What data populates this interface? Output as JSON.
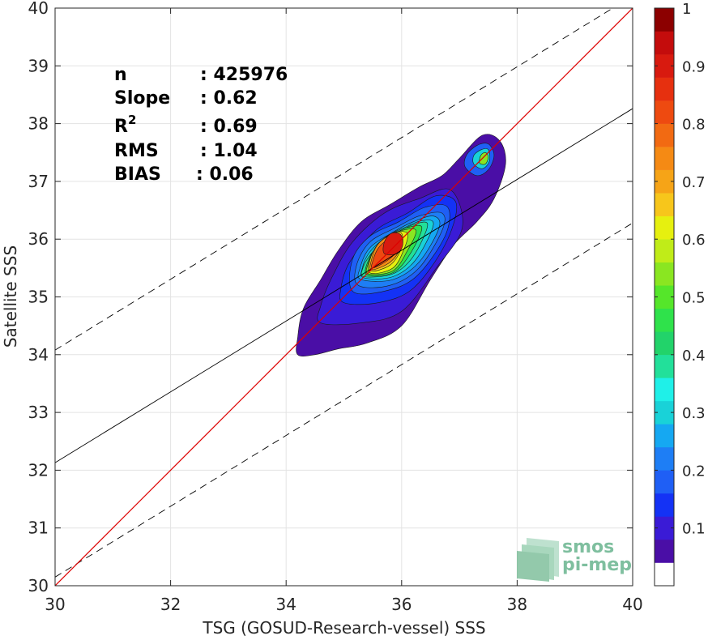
{
  "chart_data": {
    "type": "contourf-scatter-density",
    "xlabel": "TSG (GOSUD-Research-vessel) SSS",
    "ylabel": "Satellite SSS",
    "xlim": [
      30,
      40
    ],
    "ylim": [
      30,
      40
    ],
    "x_ticks": [
      "30",
      "32",
      "34",
      "36",
      "38",
      "40"
    ],
    "y_ticks": [
      "30",
      "31",
      "32",
      "33",
      "34",
      "35",
      "36",
      "37",
      "38",
      "39",
      "40"
    ],
    "grid": true,
    "stats": [
      {
        "label": "n",
        "value": ": 425976"
      },
      {
        "label": "Slope",
        "value": ": 0.62"
      },
      {
        "label": "R",
        "sup": "2",
        "value": ": 0.69"
      },
      {
        "label": "RMS",
        "value": ": 1.04"
      },
      {
        "label": "BIAS",
        "value": ": 0.06"
      }
    ],
    "identity_line": {
      "x": [
        30,
        40
      ],
      "y": [
        30,
        40
      ],
      "color": "#dd0000"
    },
    "regression_line": {
      "x": [
        30,
        40
      ],
      "y": [
        32.13,
        38.26
      ],
      "color": "#000000"
    },
    "regression_bounds": [
      {
        "x": [
          30,
          40
        ],
        "y": [
          34.08,
          40.21
        ]
      },
      {
        "x": [
          30,
          40
        ],
        "y": [
          30.15,
          36.28
        ]
      }
    ],
    "density_levels": [
      {
        "level": 0.05,
        "color": "#4a0ea6",
        "points": [
          [
            34.2,
            34.0
          ],
          [
            34.5,
            34.0
          ],
          [
            34.9,
            34.1
          ],
          [
            35.4,
            34.2
          ],
          [
            36.0,
            34.5
          ],
          [
            36.5,
            35.3
          ],
          [
            36.9,
            35.9
          ],
          [
            37.3,
            36.3
          ],
          [
            37.6,
            36.7
          ],
          [
            37.8,
            37.3
          ],
          [
            37.7,
            37.7
          ],
          [
            37.4,
            37.8
          ],
          [
            37.0,
            37.4
          ],
          [
            36.7,
            37.1
          ],
          [
            36.3,
            36.9
          ],
          [
            35.8,
            36.6
          ],
          [
            35.3,
            36.3
          ],
          [
            34.9,
            35.8
          ],
          [
            34.6,
            35.3
          ],
          [
            34.3,
            34.8
          ],
          [
            34.2,
            34.3
          ]
        ]
      },
      {
        "level": 0.1,
        "color": "#3a1bd6",
        "points": [
          [
            34.6,
            34.55
          ],
          [
            35.3,
            34.55
          ],
          [
            36.0,
            34.75
          ],
          [
            36.6,
            35.5
          ],
          [
            37.05,
            36.2
          ],
          [
            36.85,
            36.85
          ],
          [
            36.3,
            36.7
          ],
          [
            35.7,
            36.45
          ],
          [
            35.15,
            35.95
          ],
          [
            34.8,
            35.35
          ],
          [
            34.6,
            34.85
          ]
        ]
      },
      {
        "level": 0.15,
        "color": "#1432f5",
        "points": [
          [
            35.0,
            34.9
          ],
          [
            35.6,
            34.9
          ],
          [
            36.2,
            35.15
          ],
          [
            36.75,
            35.9
          ],
          [
            36.95,
            36.6
          ],
          [
            36.6,
            36.75
          ],
          [
            36.1,
            36.45
          ],
          [
            35.55,
            36.15
          ],
          [
            35.1,
            35.6
          ],
          [
            34.95,
            35.15
          ]
        ]
      },
      {
        "level": 0.2,
        "color": "#1f5ff5",
        "points": [
          [
            35.15,
            35.1
          ],
          [
            35.7,
            35.1
          ],
          [
            36.25,
            35.35
          ],
          [
            36.75,
            36.05
          ],
          [
            36.8,
            36.55
          ],
          [
            36.4,
            36.55
          ],
          [
            35.95,
            36.3
          ],
          [
            35.45,
            36.05
          ],
          [
            35.15,
            35.65
          ]
        ]
      },
      {
        "level": 0.25,
        "color": "#1e7ef5",
        "points": [
          [
            35.25,
            35.2
          ],
          [
            35.8,
            35.2
          ],
          [
            36.3,
            35.5
          ],
          [
            36.7,
            36.15
          ],
          [
            36.7,
            36.45
          ],
          [
            36.3,
            36.4
          ],
          [
            35.9,
            36.2
          ],
          [
            35.45,
            35.95
          ],
          [
            35.22,
            35.55
          ]
        ]
      },
      {
        "level": 0.3,
        "color": "#15a8f2",
        "points": [
          [
            35.3,
            35.3
          ],
          [
            35.85,
            35.3
          ],
          [
            36.3,
            35.6
          ],
          [
            36.65,
            36.2
          ],
          [
            36.55,
            36.4
          ],
          [
            36.2,
            36.3
          ],
          [
            35.85,
            36.12
          ],
          [
            35.45,
            35.85
          ],
          [
            35.28,
            35.5
          ]
        ]
      },
      {
        "level": 0.35,
        "color": "#19d2d8",
        "points": [
          [
            35.35,
            35.33
          ],
          [
            35.85,
            35.35
          ],
          [
            36.25,
            35.65
          ],
          [
            36.55,
            36.25
          ],
          [
            36.35,
            36.32
          ],
          [
            36.05,
            36.2
          ],
          [
            35.75,
            36.05
          ],
          [
            35.45,
            35.78
          ],
          [
            35.32,
            35.5
          ]
        ]
      },
      {
        "level": 0.4,
        "color": "#22e09a",
        "points": [
          [
            35.35,
            35.35
          ],
          [
            35.85,
            35.4
          ],
          [
            36.2,
            35.7
          ],
          [
            36.45,
            36.25
          ],
          [
            36.2,
            36.25
          ],
          [
            35.95,
            36.12
          ],
          [
            35.7,
            36.0
          ],
          [
            35.45,
            35.72
          ],
          [
            35.33,
            35.5
          ]
        ]
      },
      {
        "level": 0.45,
        "color": "#2fe24b",
        "points": [
          [
            35.4,
            35.38
          ],
          [
            35.85,
            35.42
          ],
          [
            36.15,
            35.75
          ],
          [
            36.35,
            36.2
          ],
          [
            36.1,
            36.2
          ],
          [
            35.85,
            36.08
          ],
          [
            35.6,
            35.9
          ],
          [
            35.43,
            35.65
          ]
        ]
      },
      {
        "level": 0.5,
        "color": "#8ae621",
        "points": [
          [
            35.42,
            35.4
          ],
          [
            35.85,
            35.45
          ],
          [
            36.1,
            35.8
          ],
          [
            36.25,
            36.15
          ],
          [
            36.0,
            36.15
          ],
          [
            35.75,
            36.05
          ],
          [
            35.55,
            35.85
          ],
          [
            35.43,
            35.6
          ]
        ]
      },
      {
        "level": 0.55,
        "color": "#e6f00f",
        "points": [
          [
            35.45,
            35.42
          ],
          [
            35.85,
            35.5
          ],
          [
            36.05,
            35.85
          ],
          [
            36.1,
            36.1
          ],
          [
            35.9,
            36.12
          ],
          [
            35.68,
            36.0
          ],
          [
            35.5,
            35.75
          ]
        ]
      },
      {
        "level": 0.6,
        "color": "#f7c61b",
        "points": [
          [
            35.45,
            35.45
          ],
          [
            35.8,
            35.55
          ],
          [
            36.0,
            35.85
          ],
          [
            36.0,
            36.1
          ],
          [
            35.85,
            36.1
          ],
          [
            35.62,
            35.95
          ],
          [
            35.47,
            35.7
          ]
        ]
      },
      {
        "level": 0.7,
        "color": "#f58a14",
        "points": [
          [
            35.48,
            35.47
          ],
          [
            35.8,
            35.6
          ],
          [
            35.98,
            35.85
          ],
          [
            35.97,
            36.07
          ],
          [
            35.8,
            36.07
          ],
          [
            35.58,
            35.9
          ],
          [
            35.48,
            35.65
          ]
        ]
      },
      {
        "level": 0.8,
        "color": "#ee4a10",
        "points": [
          [
            35.5,
            35.5
          ],
          [
            35.78,
            35.65
          ],
          [
            35.95,
            35.85
          ],
          [
            35.93,
            36.02
          ],
          [
            35.8,
            36.02
          ],
          [
            35.6,
            35.85
          ],
          [
            35.5,
            35.62
          ]
        ]
      },
      {
        "level": 0.9,
        "color": "#d81a0f",
        "points": [
          [
            35.7,
            35.75
          ],
          [
            35.92,
            35.75
          ],
          [
            36.02,
            35.9
          ],
          [
            35.98,
            36.08
          ],
          [
            35.82,
            36.1
          ],
          [
            35.7,
            35.95
          ]
        ]
      },
      {
        "level": 0.2,
        "color": "#1f5ff5",
        "points": [
          [
            37.1,
            37.25
          ],
          [
            37.3,
            37.1
          ],
          [
            37.5,
            37.2
          ],
          [
            37.6,
            37.45
          ],
          [
            37.5,
            37.65
          ],
          [
            37.3,
            37.62
          ],
          [
            37.12,
            37.45
          ]
        ]
      },
      {
        "level": 0.35,
        "color": "#19d2d8",
        "points": [
          [
            37.25,
            37.3
          ],
          [
            37.4,
            37.22
          ],
          [
            37.52,
            37.35
          ],
          [
            37.5,
            37.55
          ],
          [
            37.38,
            37.55
          ],
          [
            37.25,
            37.45
          ]
        ]
      },
      {
        "level": 0.55,
        "color": "#8ae621",
        "points": [
          [
            37.35,
            37.32
          ],
          [
            37.45,
            37.3
          ],
          [
            37.5,
            37.42
          ],
          [
            37.45,
            37.5
          ],
          [
            37.37,
            37.45
          ]
        ]
      }
    ],
    "colorbar": {
      "ticks": [
        "0.1",
        "0.2",
        "0.3",
        "0.4",
        "0.5",
        "0.6",
        "0.7",
        "0.8",
        "0.9",
        "1"
      ],
      "tick_values": [
        0.1,
        0.2,
        0.3,
        0.4,
        0.5,
        0.6,
        0.7,
        0.8,
        0.9,
        1.0
      ],
      "range": [
        0,
        1
      ],
      "colors": [
        "#ffffff",
        "#4a0ea6",
        "#3a1bd6",
        "#1432f5",
        "#1f5ff5",
        "#1e7ef5",
        "#15a8f2",
        "#19d2d8",
        "#1ff0e8",
        "#22e09a",
        "#22d36a",
        "#2fe24b",
        "#55e62a",
        "#8ae621",
        "#c0ec18",
        "#e6f00f",
        "#f7c61b",
        "#f6a417",
        "#f58a14",
        "#f26a12",
        "#ee4a10",
        "#e6300f",
        "#d81a0f",
        "#c40c0c",
        "#8c0000"
      ]
    },
    "logo": {
      "line1": "smos",
      "line2": "pi-mep"
    }
  }
}
